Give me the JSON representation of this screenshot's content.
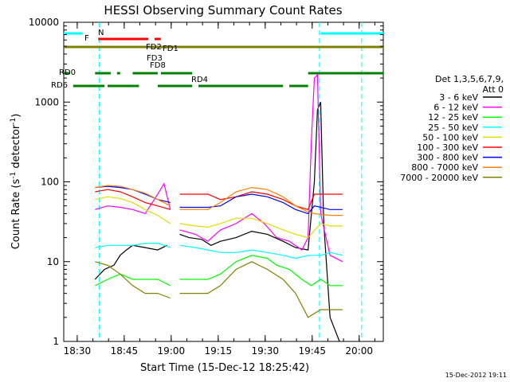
{
  "chart_data": {
    "type": "line",
    "title": "HESSI Observing Summary Count Rates",
    "xlabel": "Start Time (15-Dec-12 18:25:42)",
    "ylabel_main": "Count Rate (s",
    "ylabel_sup1": "-1",
    "ylabel_mid": " detector",
    "ylabel_sup2": "-1",
    "ylabel_end": ")",
    "x_unit": "minutes since 18:25:42",
    "xlim": [
      0,
      102
    ],
    "ylim": [
      1,
      10000
    ],
    "yscale": "log",
    "x_ticks": [
      {
        "x": 4.3,
        "label": "18:30"
      },
      {
        "x": 19.3,
        "label": "18:45"
      },
      {
        "x": 34.3,
        "label": "19:00"
      },
      {
        "x": 49.3,
        "label": "19:15"
      },
      {
        "x": 64.3,
        "label": "19:30"
      },
      {
        "x": 79.3,
        "label": "19:45"
      },
      {
        "x": 94.3,
        "label": "20:00"
      }
    ],
    "y_ticks": [
      {
        "y": 1,
        "label": "1"
      },
      {
        "y": 10,
        "label": "10"
      },
      {
        "y": 100,
        "label": "100"
      },
      {
        "y": 1000,
        "label": "1000"
      },
      {
        "y": 10000,
        "label": "10000"
      }
    ],
    "legend_title1": "Det 1,3,5,6,7,9,",
    "legend_title2": "Att 0",
    "series": [
      {
        "name": "3 - 6 keV",
        "color": "#000000",
        "points": [
          [
            10,
            6
          ],
          [
            13,
            8
          ],
          [
            16,
            9
          ],
          [
            18,
            12
          ],
          [
            20,
            14
          ],
          [
            22,
            16
          ],
          [
            26,
            15
          ],
          [
            30,
            14
          ],
          [
            33,
            16
          ],
          [
            36,
            0
          ],
          [
            37,
            22
          ],
          [
            40,
            20
          ],
          [
            44,
            19
          ],
          [
            47,
            16
          ],
          [
            50,
            18
          ],
          [
            55,
            20
          ],
          [
            60,
            24
          ],
          [
            65,
            22
          ],
          [
            70,
            18
          ],
          [
            74,
            15
          ],
          [
            78,
            14
          ],
          [
            80,
            100
          ],
          [
            81,
            800
          ],
          [
            82,
            1000
          ],
          [
            83,
            30
          ],
          [
            85,
            2
          ],
          [
            88,
            1
          ]
        ]
      },
      {
        "name": "6 - 12 keV",
        "color": "#ff00ff",
        "points": [
          [
            10,
            45
          ],
          [
            14,
            50
          ],
          [
            18,
            48
          ],
          [
            22,
            45
          ],
          [
            26,
            40
          ],
          [
            30,
            70
          ],
          [
            32,
            95
          ],
          [
            34,
            45
          ],
          [
            36,
            0
          ],
          [
            37,
            25
          ],
          [
            42,
            22
          ],
          [
            46,
            18
          ],
          [
            50,
            25
          ],
          [
            55,
            30
          ],
          [
            60,
            40
          ],
          [
            64,
            30
          ],
          [
            68,
            20
          ],
          [
            72,
            18
          ],
          [
            76,
            14
          ],
          [
            78,
            20
          ],
          [
            79,
            300
          ],
          [
            80,
            2000
          ],
          [
            81,
            2200
          ],
          [
            82,
            40
          ],
          [
            85,
            12
          ],
          [
            89,
            10
          ]
        ]
      },
      {
        "name": "12 - 25 keV",
        "color": "#00ff00",
        "points": [
          [
            10,
            5
          ],
          [
            14,
            6
          ],
          [
            18,
            7
          ],
          [
            22,
            6
          ],
          [
            26,
            6
          ],
          [
            30,
            6
          ],
          [
            34,
            5
          ],
          [
            36,
            0
          ],
          [
            37,
            6
          ],
          [
            42,
            6
          ],
          [
            46,
            6
          ],
          [
            50,
            7
          ],
          [
            55,
            10
          ],
          [
            60,
            12
          ],
          [
            65,
            11
          ],
          [
            68,
            9
          ],
          [
            72,
            8
          ],
          [
            76,
            6
          ],
          [
            79,
            5
          ],
          [
            82,
            6
          ],
          [
            85,
            5
          ],
          [
            89,
            5
          ]
        ]
      },
      {
        "name": "25 - 50 keV",
        "color": "#00ffff",
        "points": [
          [
            10,
            15
          ],
          [
            14,
            16
          ],
          [
            18,
            16
          ],
          [
            22,
            16
          ],
          [
            26,
            17
          ],
          [
            30,
            17
          ],
          [
            34,
            15
          ],
          [
            36,
            0
          ],
          [
            37,
            16
          ],
          [
            42,
            15
          ],
          [
            46,
            14
          ],
          [
            50,
            13
          ],
          [
            55,
            13
          ],
          [
            60,
            14
          ],
          [
            65,
            13
          ],
          [
            70,
            12
          ],
          [
            74,
            11
          ],
          [
            78,
            12
          ],
          [
            82,
            12
          ],
          [
            85,
            13
          ],
          [
            89,
            12
          ]
        ]
      },
      {
        "name": "50 - 100 keV",
        "color": "#dddd00",
        "points": [
          [
            10,
            60
          ],
          [
            14,
            65
          ],
          [
            18,
            62
          ],
          [
            22,
            55
          ],
          [
            26,
            45
          ],
          [
            30,
            38
          ],
          [
            34,
            30
          ],
          [
            36,
            0
          ],
          [
            37,
            30
          ],
          [
            42,
            28
          ],
          [
            46,
            27
          ],
          [
            50,
            30
          ],
          [
            55,
            35
          ],
          [
            60,
            35
          ],
          [
            65,
            30
          ],
          [
            70,
            25
          ],
          [
            74,
            22
          ],
          [
            78,
            20
          ],
          [
            82,
            30
          ],
          [
            85,
            28
          ],
          [
            89,
            28
          ]
        ]
      },
      {
        "name": "100 - 300 keV",
        "color": "#ff0000",
        "points": [
          [
            10,
            75
          ],
          [
            14,
            80
          ],
          [
            18,
            75
          ],
          [
            22,
            65
          ],
          [
            26,
            55
          ],
          [
            30,
            50
          ],
          [
            34,
            45
          ],
          [
            36,
            0
          ],
          [
            37,
            70
          ],
          [
            42,
            70
          ],
          [
            46,
            70
          ],
          [
            50,
            60
          ],
          [
            55,
            65
          ],
          [
            60,
            75
          ],
          [
            65,
            70
          ],
          [
            70,
            60
          ],
          [
            74,
            50
          ],
          [
            78,
            45
          ],
          [
            80,
            70
          ],
          [
            85,
            70
          ],
          [
            89,
            70
          ]
        ]
      },
      {
        "name": "300 - 800 keV",
        "color": "#0000ff",
        "points": [
          [
            10,
            85
          ],
          [
            14,
            88
          ],
          [
            18,
            85
          ],
          [
            22,
            80
          ],
          [
            26,
            70
          ],
          [
            30,
            60
          ],
          [
            34,
            55
          ],
          [
            36,
            0
          ],
          [
            37,
            48
          ],
          [
            42,
            48
          ],
          [
            46,
            48
          ],
          [
            50,
            50
          ],
          [
            55,
            65
          ],
          [
            60,
            70
          ],
          [
            65,
            65
          ],
          [
            70,
            55
          ],
          [
            74,
            45
          ],
          [
            78,
            40
          ],
          [
            80,
            50
          ],
          [
            85,
            45
          ],
          [
            89,
            45
          ]
        ]
      },
      {
        "name": "800 - 7000 keV",
        "color": "#ff8000",
        "points": [
          [
            10,
            85
          ],
          [
            14,
            90
          ],
          [
            18,
            88
          ],
          [
            22,
            80
          ],
          [
            26,
            72
          ],
          [
            30,
            60
          ],
          [
            34,
            50
          ],
          [
            36,
            0
          ],
          [
            37,
            45
          ],
          [
            42,
            45
          ],
          [
            46,
            45
          ],
          [
            50,
            55
          ],
          [
            55,
            75
          ],
          [
            60,
            85
          ],
          [
            65,
            80
          ],
          [
            70,
            65
          ],
          [
            74,
            50
          ],
          [
            78,
            42
          ],
          [
            80,
            40
          ],
          [
            85,
            38
          ],
          [
            89,
            38
          ]
        ]
      },
      {
        "name": "7000 - 20000 keV",
        "color": "#808000",
        "points": [
          [
            10,
            10
          ],
          [
            14,
            9
          ],
          [
            18,
            7
          ],
          [
            22,
            5
          ],
          [
            26,
            4
          ],
          [
            30,
            4
          ],
          [
            34,
            3.5
          ],
          [
            36,
            0
          ],
          [
            37,
            4
          ],
          [
            42,
            4
          ],
          [
            46,
            4
          ],
          [
            50,
            5
          ],
          [
            55,
            8
          ],
          [
            60,
            10
          ],
          [
            65,
            8
          ],
          [
            70,
            6
          ],
          [
            74,
            4
          ],
          [
            78,
            2
          ],
          [
            82,
            2.5
          ],
          [
            85,
            2.5
          ],
          [
            89,
            2.5
          ]
        ]
      }
    ],
    "flag_annotations": [
      {
        "label": "N",
        "color": "#00ffff"
      },
      {
        "label": "F",
        "color": "#ff0000"
      },
      {
        "label": "FD1",
        "color": "#808000"
      },
      {
        "label": "FD2",
        "color": "#808000"
      },
      {
        "label": "FD3",
        "color": "#808000"
      },
      {
        "label": "FD8",
        "color": "#808000"
      },
      {
        "label": "RD0",
        "color": "#008000"
      },
      {
        "label": "RD4",
        "color": "#008000"
      },
      {
        "label": "RD6",
        "color": "#008000"
      }
    ],
    "vlines": [
      {
        "x": 11.3,
        "color": "#00ffff"
      },
      {
        "x": 81.6,
        "color": "#00ffff"
      },
      {
        "x": 95.1,
        "color": "#00ffff"
      }
    ],
    "grid": false,
    "legend_position": "right"
  },
  "footer_timestamp": "15-Dec-2012 19:11"
}
